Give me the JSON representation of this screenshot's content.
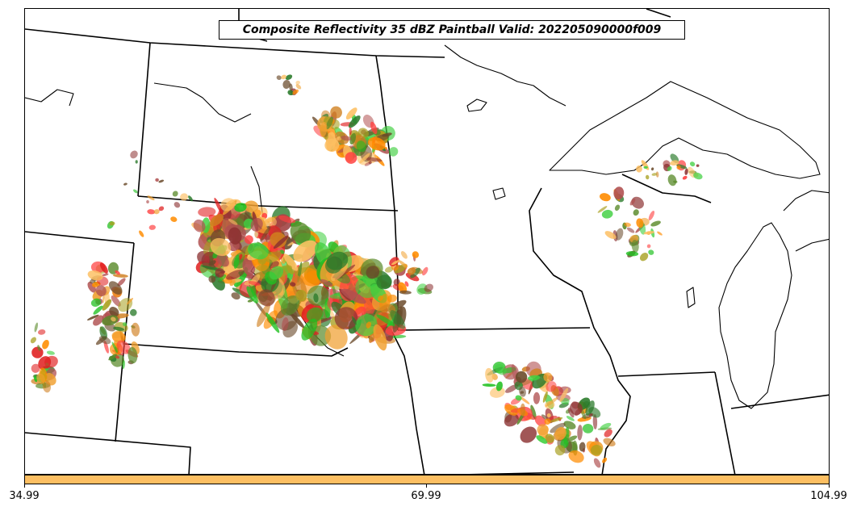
{
  "title": "Composite Reflectivity 35 dBZ Paintball Valid: 202205090000f009",
  "colorbar": {
    "color": "#fdbf62",
    "ticks": [
      "34.99",
      "69.99",
      "104.99"
    ]
  },
  "member_colors": [
    "#ff8c00",
    "#f0a030",
    "#e02020",
    "#ff4040",
    "#8b3030",
    "#b05050",
    "#20c020",
    "#40d040",
    "#2a7a2a",
    "#5a8a2a",
    "#a8a020",
    "#d08020",
    "#6a4a2a",
    "#fdbf62"
  ]
}
